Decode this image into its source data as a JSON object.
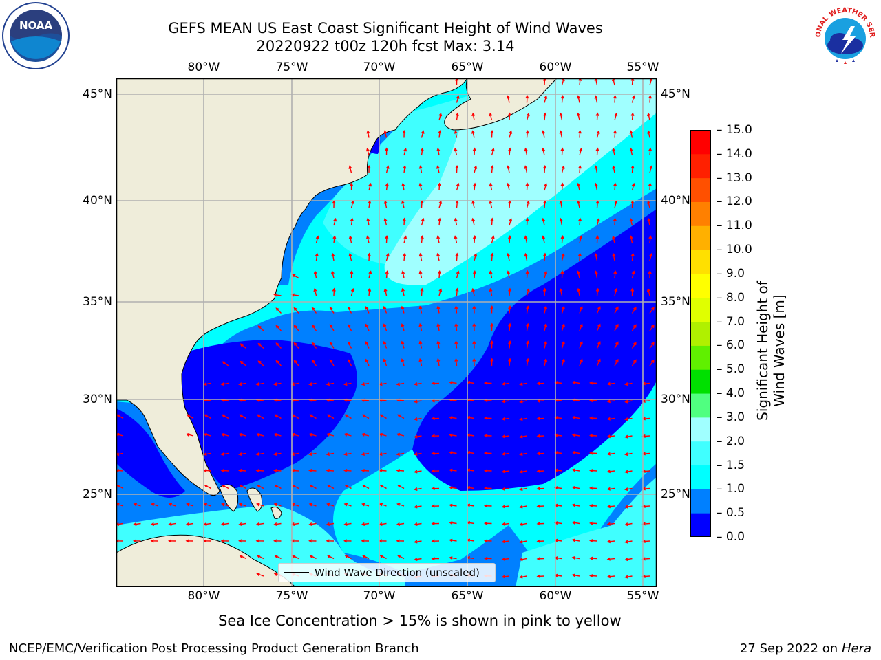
{
  "header": {
    "title_line1": "GEFS MEAN US East Coast Significant Height of Wind Waves",
    "title_line2": "20220922 t00z 120h fcst   Max: 3.14"
  },
  "logos": {
    "left": "NOAA",
    "right": "NATIONAL WEATHER SERVICE"
  },
  "map": {
    "lon_ticks": [
      "80°W",
      "75°W",
      "70°W",
      "65°W",
      "60°W",
      "55°W"
    ],
    "lat_ticks": [
      "45°N",
      "40°N",
      "35°N",
      "30°N",
      "25°N"
    ],
    "lon_range": [
      -85,
      -54.2
    ],
    "lat_range": [
      20.5,
      46
    ],
    "legend_label": "Wind Wave Direction (unscaled)",
    "colors": {
      "land": "#efedda",
      "arrow": "#ff0000",
      "grid": "#b0b0b0"
    }
  },
  "colorbar": {
    "label": "Significant Height of Wind Waves [m]",
    "ticks": [
      "0.0",
      "0.5",
      "1.0",
      "1.5",
      "2.0",
      "3.0",
      "4.0",
      "5.0",
      "6.0",
      "7.0",
      "8.0",
      "9.0",
      "10.0",
      "11.0",
      "12.0",
      "13.0",
      "14.0",
      "15.0"
    ],
    "colors": [
      "#0000ff",
      "#0080ff",
      "#00ffff",
      "#40ffff",
      "#a0ffff",
      "#50ff80",
      "#00e000",
      "#60f000",
      "#b0f000",
      "#e0ff00",
      "#ffff00",
      "#ffe000",
      "#ffb000",
      "#ff8000",
      "#ff5000",
      "#ff2000",
      "#ff0000"
    ]
  },
  "caption": "Sea Ice Concentration > 15% is shown in pink to yellow",
  "footer": {
    "left": "NCEP/EMC/Verification Post Processing Product Generation Branch",
    "right_date": "27 Sep 2022 on",
    "right_host": "Hera"
  }
}
